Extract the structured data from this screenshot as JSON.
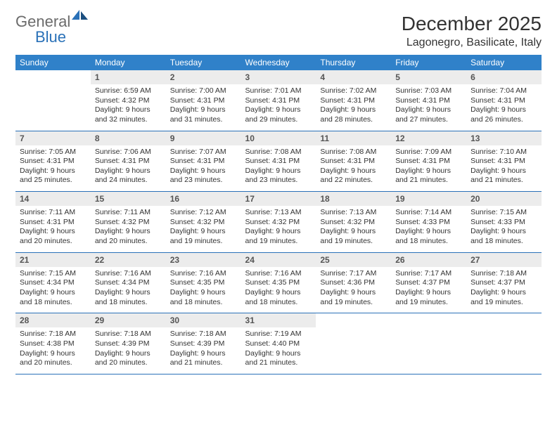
{
  "logo": {
    "text1": "General",
    "text2": "Blue"
  },
  "title": {
    "month": "December 2025",
    "location": "Lagonegro, Basilicate, Italy"
  },
  "colors": {
    "header_bg": "#3081c9",
    "header_text": "#ffffff",
    "daynum_bg": "#ececec",
    "daynum_text": "#555555",
    "border": "#2a71b8",
    "logo_gray": "#6b6b6b",
    "logo_blue": "#2a71b8"
  },
  "weekdays": [
    "Sunday",
    "Monday",
    "Tuesday",
    "Wednesday",
    "Thursday",
    "Friday",
    "Saturday"
  ],
  "weeks": [
    [
      null,
      {
        "n": "1",
        "sr": "6:59 AM",
        "ss": "4:32 PM",
        "dl": "9 hours and 32 minutes."
      },
      {
        "n": "2",
        "sr": "7:00 AM",
        "ss": "4:31 PM",
        "dl": "9 hours and 31 minutes."
      },
      {
        "n": "3",
        "sr": "7:01 AM",
        "ss": "4:31 PM",
        "dl": "9 hours and 29 minutes."
      },
      {
        "n": "4",
        "sr": "7:02 AM",
        "ss": "4:31 PM",
        "dl": "9 hours and 28 minutes."
      },
      {
        "n": "5",
        "sr": "7:03 AM",
        "ss": "4:31 PM",
        "dl": "9 hours and 27 minutes."
      },
      {
        "n": "6",
        "sr": "7:04 AM",
        "ss": "4:31 PM",
        "dl": "9 hours and 26 minutes."
      }
    ],
    [
      {
        "n": "7",
        "sr": "7:05 AM",
        "ss": "4:31 PM",
        "dl": "9 hours and 25 minutes."
      },
      {
        "n": "8",
        "sr": "7:06 AM",
        "ss": "4:31 PM",
        "dl": "9 hours and 24 minutes."
      },
      {
        "n": "9",
        "sr": "7:07 AM",
        "ss": "4:31 PM",
        "dl": "9 hours and 23 minutes."
      },
      {
        "n": "10",
        "sr": "7:08 AM",
        "ss": "4:31 PM",
        "dl": "9 hours and 23 minutes."
      },
      {
        "n": "11",
        "sr": "7:08 AM",
        "ss": "4:31 PM",
        "dl": "9 hours and 22 minutes."
      },
      {
        "n": "12",
        "sr": "7:09 AM",
        "ss": "4:31 PM",
        "dl": "9 hours and 21 minutes."
      },
      {
        "n": "13",
        "sr": "7:10 AM",
        "ss": "4:31 PM",
        "dl": "9 hours and 21 minutes."
      }
    ],
    [
      {
        "n": "14",
        "sr": "7:11 AM",
        "ss": "4:31 PM",
        "dl": "9 hours and 20 minutes."
      },
      {
        "n": "15",
        "sr": "7:11 AM",
        "ss": "4:32 PM",
        "dl": "9 hours and 20 minutes."
      },
      {
        "n": "16",
        "sr": "7:12 AM",
        "ss": "4:32 PM",
        "dl": "9 hours and 19 minutes."
      },
      {
        "n": "17",
        "sr": "7:13 AM",
        "ss": "4:32 PM",
        "dl": "9 hours and 19 minutes."
      },
      {
        "n": "18",
        "sr": "7:13 AM",
        "ss": "4:32 PM",
        "dl": "9 hours and 19 minutes."
      },
      {
        "n": "19",
        "sr": "7:14 AM",
        "ss": "4:33 PM",
        "dl": "9 hours and 18 minutes."
      },
      {
        "n": "20",
        "sr": "7:15 AM",
        "ss": "4:33 PM",
        "dl": "9 hours and 18 minutes."
      }
    ],
    [
      {
        "n": "21",
        "sr": "7:15 AM",
        "ss": "4:34 PM",
        "dl": "9 hours and 18 minutes."
      },
      {
        "n": "22",
        "sr": "7:16 AM",
        "ss": "4:34 PM",
        "dl": "9 hours and 18 minutes."
      },
      {
        "n": "23",
        "sr": "7:16 AM",
        "ss": "4:35 PM",
        "dl": "9 hours and 18 minutes."
      },
      {
        "n": "24",
        "sr": "7:16 AM",
        "ss": "4:35 PM",
        "dl": "9 hours and 18 minutes."
      },
      {
        "n": "25",
        "sr": "7:17 AM",
        "ss": "4:36 PM",
        "dl": "9 hours and 19 minutes."
      },
      {
        "n": "26",
        "sr": "7:17 AM",
        "ss": "4:37 PM",
        "dl": "9 hours and 19 minutes."
      },
      {
        "n": "27",
        "sr": "7:18 AM",
        "ss": "4:37 PM",
        "dl": "9 hours and 19 minutes."
      }
    ],
    [
      {
        "n": "28",
        "sr": "7:18 AM",
        "ss": "4:38 PM",
        "dl": "9 hours and 20 minutes."
      },
      {
        "n": "29",
        "sr": "7:18 AM",
        "ss": "4:39 PM",
        "dl": "9 hours and 20 minutes."
      },
      {
        "n": "30",
        "sr": "7:18 AM",
        "ss": "4:39 PM",
        "dl": "9 hours and 21 minutes."
      },
      {
        "n": "31",
        "sr": "7:19 AM",
        "ss": "4:40 PM",
        "dl": "9 hours and 21 minutes."
      },
      null,
      null,
      null
    ]
  ]
}
